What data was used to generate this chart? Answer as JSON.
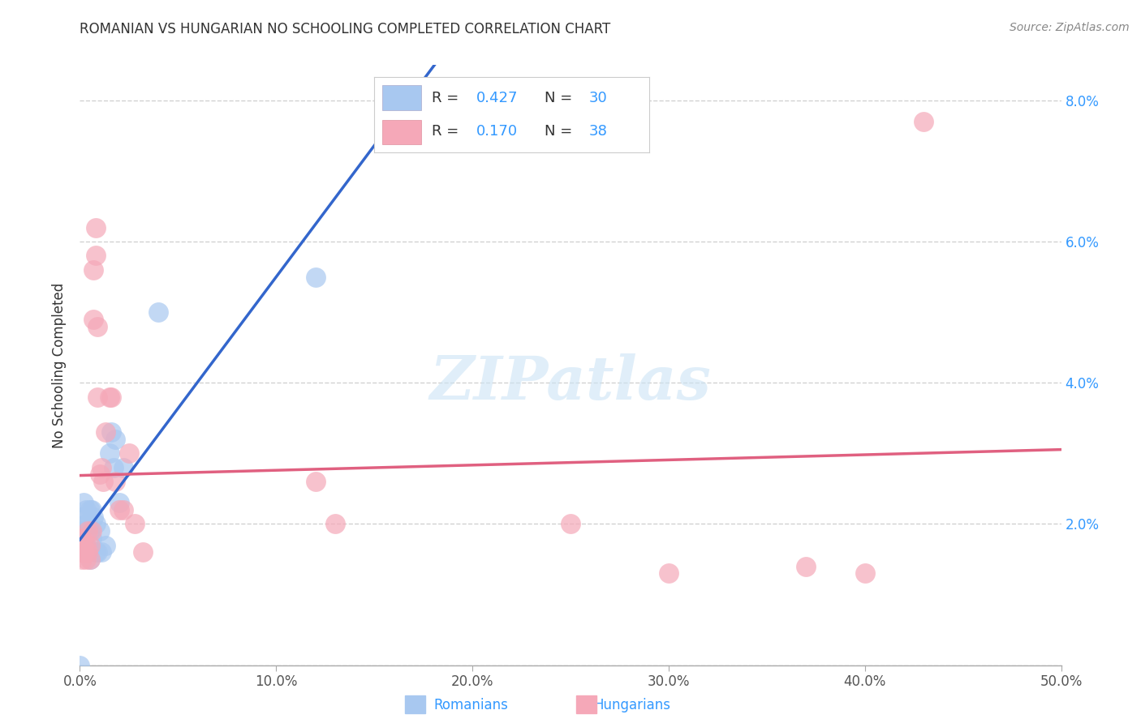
{
  "title": "ROMANIAN VS HUNGARIAN NO SCHOOLING COMPLETED CORRELATION CHART",
  "source": "Source: ZipAtlas.com",
  "ylabel": "No Schooling Completed",
  "xlim": [
    0.0,
    0.5
  ],
  "ylim": [
    0.0,
    0.085
  ],
  "xticks": [
    0.0,
    0.1,
    0.2,
    0.3,
    0.4,
    0.5
  ],
  "yticks": [
    0.0,
    0.02,
    0.04,
    0.06,
    0.08
  ],
  "xticklabels": [
    "0.0%",
    "10.0%",
    "20.0%",
    "30.0%",
    "40.0%",
    "50.0%"
  ],
  "yticklabels_right": [
    "",
    "2.0%",
    "4.0%",
    "6.0%",
    "8.0%"
  ],
  "romanian_color": "#a8c8f0",
  "hungarian_color": "#f5a8b8",
  "line_blue": "#3366cc",
  "line_pink": "#e06080",
  "line_gray_dash": "#aaaacc",
  "tick_color": "#555555",
  "title_color": "#333333",
  "grid_color": "#cccccc",
  "source_color": "#888888",
  "watermark_color": "#cce4f5",
  "romanians_R": 0.427,
  "romanians_N": 30,
  "hungarians_R": 0.17,
  "hungarians_N": 38,
  "romanian_x": [
    0.0,
    0.001,
    0.001,
    0.002,
    0.002,
    0.003,
    0.003,
    0.003,
    0.004,
    0.004,
    0.005,
    0.005,
    0.005,
    0.006,
    0.006,
    0.007,
    0.008,
    0.008,
    0.009,
    0.01,
    0.011,
    0.013,
    0.015,
    0.016,
    0.017,
    0.018,
    0.02,
    0.022,
    0.04,
    0.12
  ],
  "romanian_y": [
    0.0,
    0.018,
    0.021,
    0.019,
    0.023,
    0.017,
    0.02,
    0.022,
    0.016,
    0.02,
    0.015,
    0.019,
    0.022,
    0.018,
    0.022,
    0.021,
    0.016,
    0.02,
    0.016,
    0.019,
    0.016,
    0.017,
    0.03,
    0.033,
    0.028,
    0.032,
    0.023,
    0.028,
    0.05,
    0.055
  ],
  "hungarian_x": [
    0.0,
    0.001,
    0.001,
    0.001,
    0.002,
    0.002,
    0.003,
    0.003,
    0.004,
    0.004,
    0.005,
    0.005,
    0.006,
    0.007,
    0.007,
    0.008,
    0.008,
    0.009,
    0.009,
    0.01,
    0.011,
    0.012,
    0.013,
    0.015,
    0.016,
    0.018,
    0.02,
    0.022,
    0.025,
    0.028,
    0.032,
    0.12,
    0.13,
    0.25,
    0.3,
    0.37,
    0.4,
    0.43
  ],
  "hungarian_y": [
    0.018,
    0.016,
    0.018,
    0.015,
    0.016,
    0.017,
    0.015,
    0.017,
    0.016,
    0.019,
    0.015,
    0.017,
    0.019,
    0.049,
    0.056,
    0.058,
    0.062,
    0.048,
    0.038,
    0.027,
    0.028,
    0.026,
    0.033,
    0.038,
    0.038,
    0.026,
    0.022,
    0.022,
    0.03,
    0.02,
    0.016,
    0.026,
    0.02,
    0.02,
    0.013,
    0.014,
    0.013,
    0.077
  ]
}
